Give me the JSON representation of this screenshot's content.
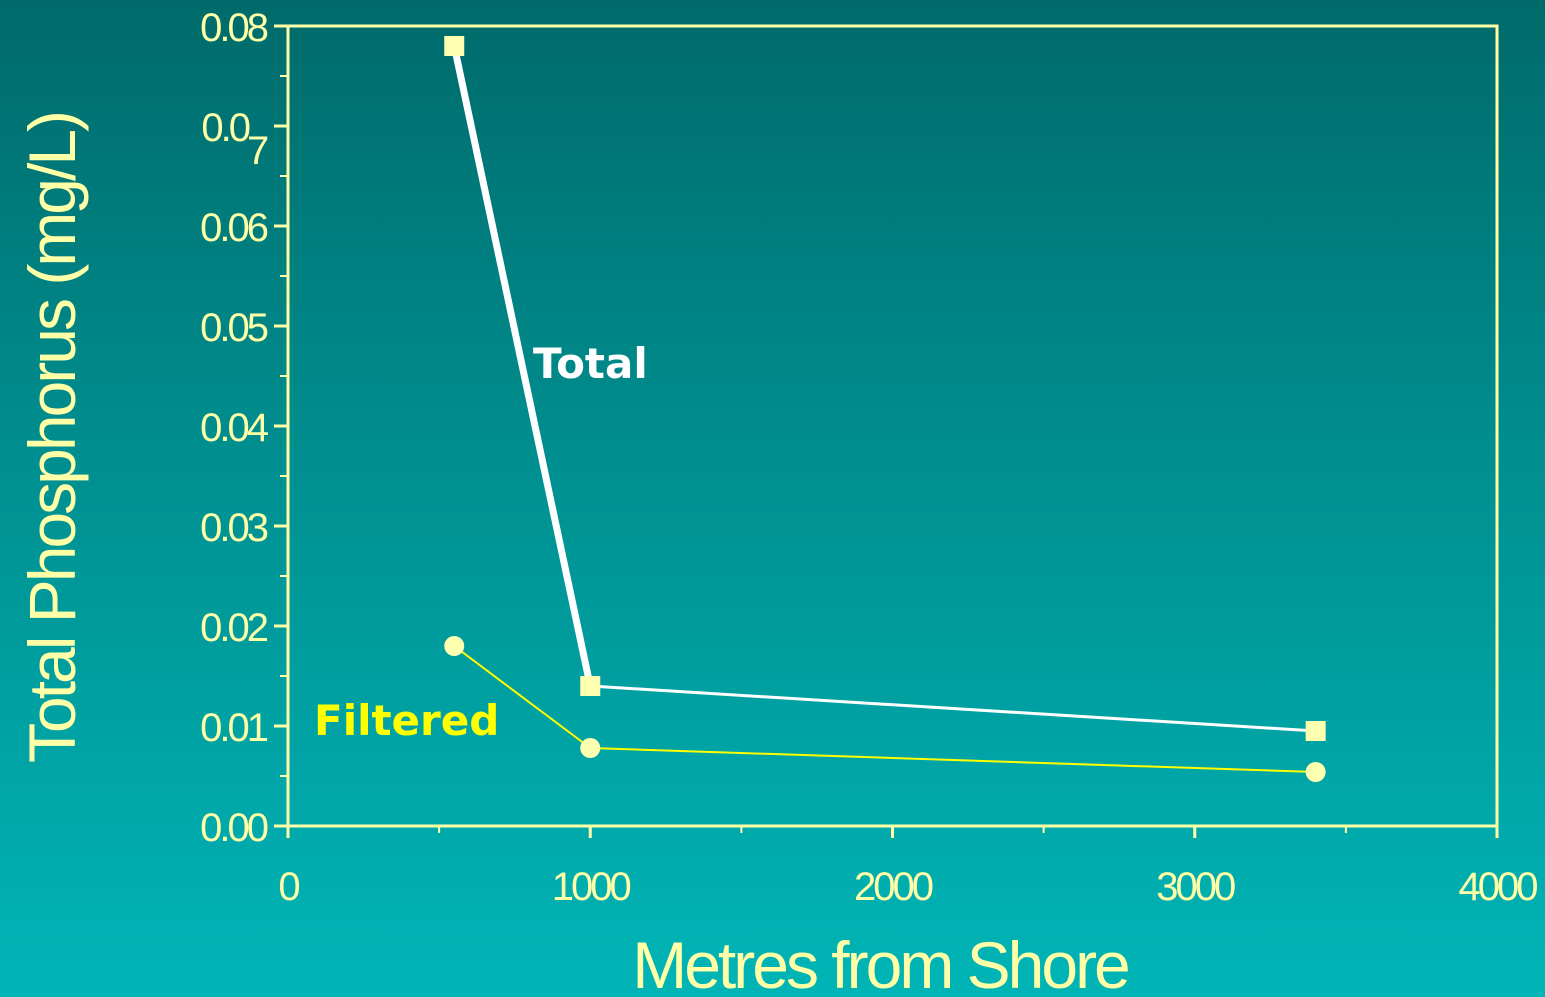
{
  "colors": {
    "axis": "#ffffa8",
    "total": "#ffffff",
    "filtered": "#ffff00",
    "marker": "#ffffb0"
  },
  "chart_data": {
    "type": "line",
    "title": "",
    "xlabel": "Metres from Shore",
    "ylabel": "Total Phosphorus (mg/L)",
    "xlim": [
      0,
      4000
    ],
    "ylim": [
      0,
      0.08
    ],
    "x_ticks": [
      {
        "value": 0,
        "label": "0"
      },
      {
        "value": 1000,
        "label": "1000"
      },
      {
        "value": 2000,
        "label": "2000"
      },
      {
        "value": 3000,
        "label": "3000"
      },
      {
        "value": 4000,
        "label": "4000"
      }
    ],
    "y_ticks": [
      {
        "value": 0,
        "label": "0.00",
        "sub": ""
      },
      {
        "value": 0.01,
        "label": "0.01",
        "sub": ""
      },
      {
        "value": 0.02,
        "label": "0.02",
        "sub": ""
      },
      {
        "value": 0.03,
        "label": "0.03",
        "sub": ""
      },
      {
        "value": 0.04,
        "label": "0.04",
        "sub": ""
      },
      {
        "value": 0.05,
        "label": "0.05",
        "sub": ""
      },
      {
        "value": 0.06,
        "label": "0.06",
        "sub": ""
      },
      {
        "value": 0.07,
        "label": "0.0",
        "sub": "7"
      },
      {
        "value": 0.08,
        "label": "0.08",
        "sub": ""
      }
    ],
    "grid": false,
    "legend": "inline labels",
    "series": [
      {
        "name": "Total",
        "marker": "square",
        "points": [
          {
            "x": 550,
            "y": 0.078
          },
          {
            "x": 1000,
            "y": 0.014
          },
          {
            "x": 3400,
            "y": 0.0095
          }
        ]
      },
      {
        "name": "Filtered",
        "marker": "circle",
        "points": [
          {
            "x": 550,
            "y": 0.018
          },
          {
            "x": 1000,
            "y": 0.0078
          },
          {
            "x": 3400,
            "y": 0.0054
          }
        ]
      }
    ]
  }
}
